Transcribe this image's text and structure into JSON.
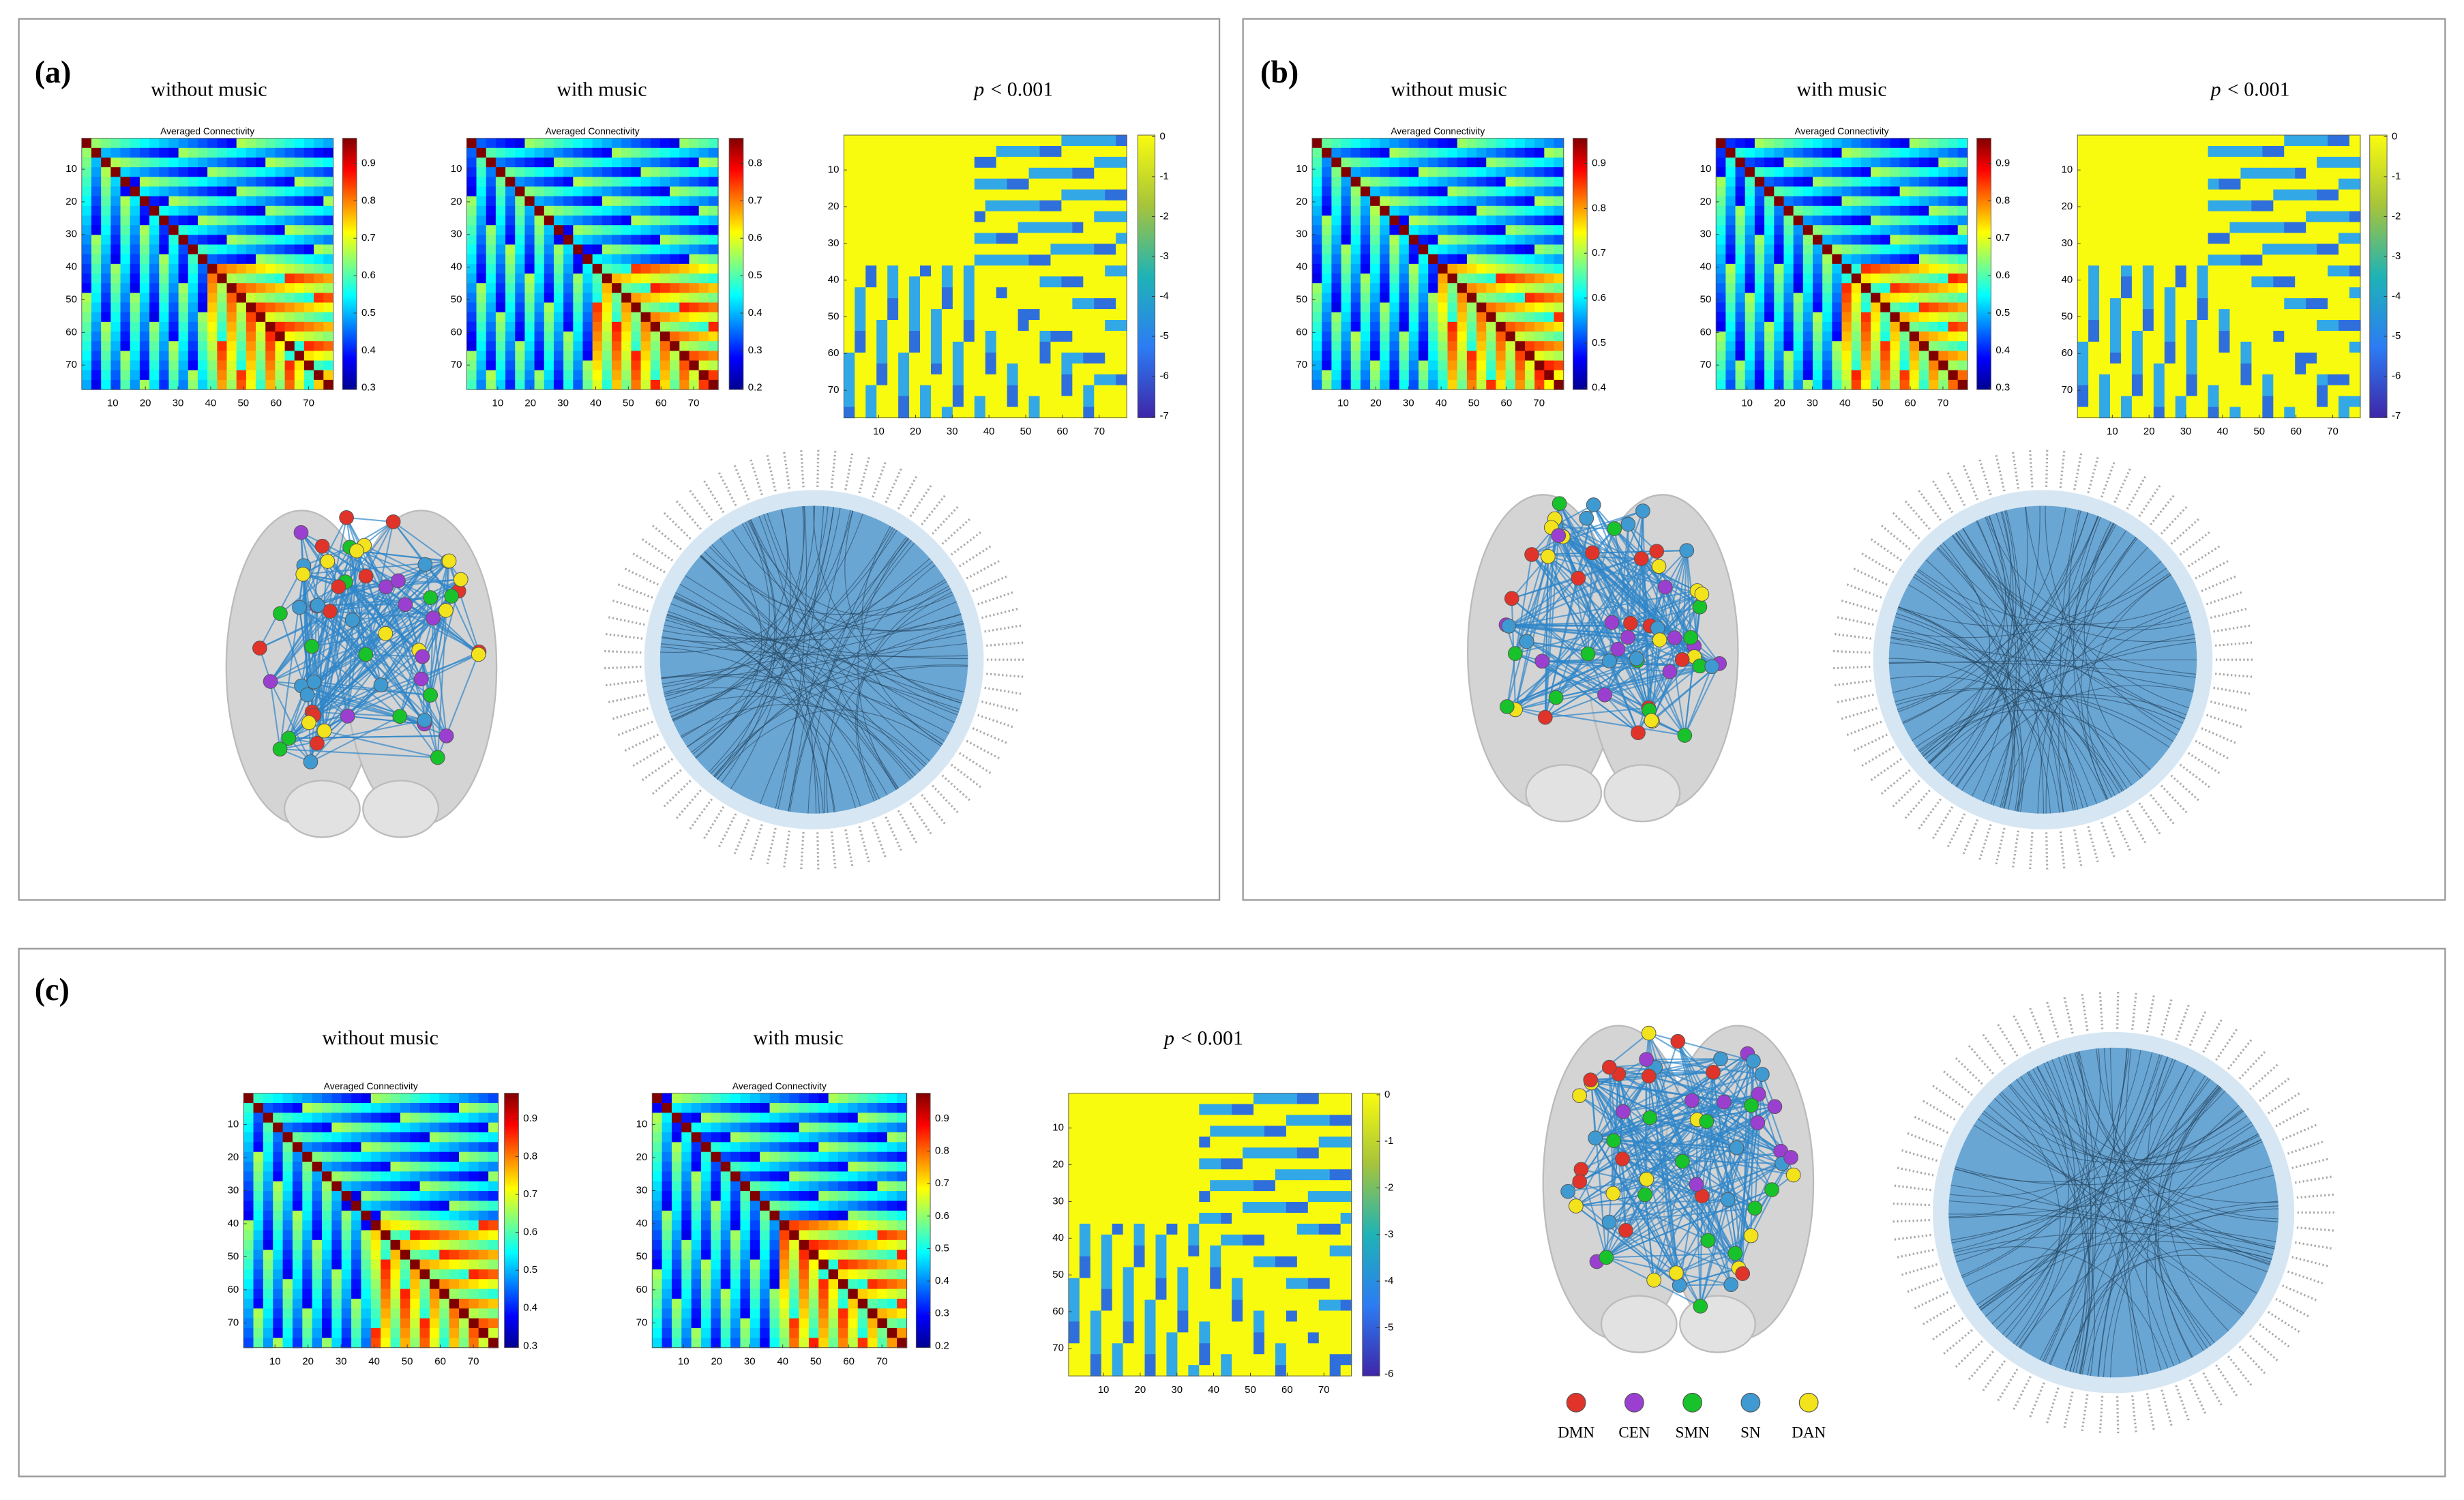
{
  "panels": [
    {
      "label": "(a)",
      "conditions": [
        {
          "title": "without music"
        },
        {
          "title": "with music"
        },
        {
          "stat": "p",
          "threshold": "< 0.001"
        }
      ],
      "heatmaps": [
        {
          "title": "Averaged Connectivity",
          "colorbar_ticks": [
            0.9,
            0.8,
            0.7,
            0.6,
            0.5,
            0.4,
            0.3
          ]
        },
        {
          "title": "Averaged Connectivity",
          "colorbar_ticks": [
            0.8,
            0.7,
            0.6,
            0.5,
            0.4,
            0.3,
            0.2
          ]
        },
        {
          "colorbar_ticks": [
            0,
            -1,
            -2,
            -3,
            -4,
            -5,
            -6,
            -7
          ]
        }
      ]
    },
    {
      "label": "(b)",
      "conditions": [
        {
          "title": "without music"
        },
        {
          "title": "with music"
        },
        {
          "stat": "p",
          "threshold": "< 0.001"
        }
      ],
      "heatmaps": [
        {
          "title": "Averaged Connectivity",
          "colorbar_ticks": [
            0.9,
            0.8,
            0.7,
            0.6,
            0.5,
            0.4
          ]
        },
        {
          "title": "Averaged Connectivity",
          "colorbar_ticks": [
            0.9,
            0.8,
            0.7,
            0.6,
            0.5,
            0.4,
            0.3
          ]
        },
        {
          "colorbar_ticks": [
            0,
            -1,
            -2,
            -3,
            -4,
            -5,
            -6,
            -7
          ]
        }
      ]
    },
    {
      "label": "(c)",
      "conditions": [
        {
          "title": "without music"
        },
        {
          "title": "with music"
        },
        {
          "stat": "p",
          "threshold": "< 0.001"
        }
      ],
      "heatmaps": [
        {
          "title": "Averaged Connectivity",
          "colorbar_ticks": [
            0.9,
            0.8,
            0.7,
            0.6,
            0.5,
            0.4,
            0.3
          ]
        },
        {
          "title": "Averaged Connectivity",
          "colorbar_ticks": [
            0.9,
            0.8,
            0.7,
            0.6,
            0.5,
            0.4,
            0.3,
            0.2
          ]
        },
        {
          "colorbar_ticks": [
            0,
            -1,
            -2,
            -3,
            -4,
            -5,
            -6
          ]
        }
      ]
    }
  ],
  "axis_ticks": [
    10,
    20,
    30,
    40,
    50,
    60,
    70
  ],
  "legend": [
    {
      "name": "DMN",
      "color": "#e0342b"
    },
    {
      "name": "CEN",
      "color": "#9b3fd1"
    },
    {
      "name": "SMN",
      "color": "#18c22a"
    },
    {
      "name": "SN",
      "color": "#3f9ad2"
    },
    {
      "name": "DAN",
      "color": "#f2e31c"
    }
  ]
}
